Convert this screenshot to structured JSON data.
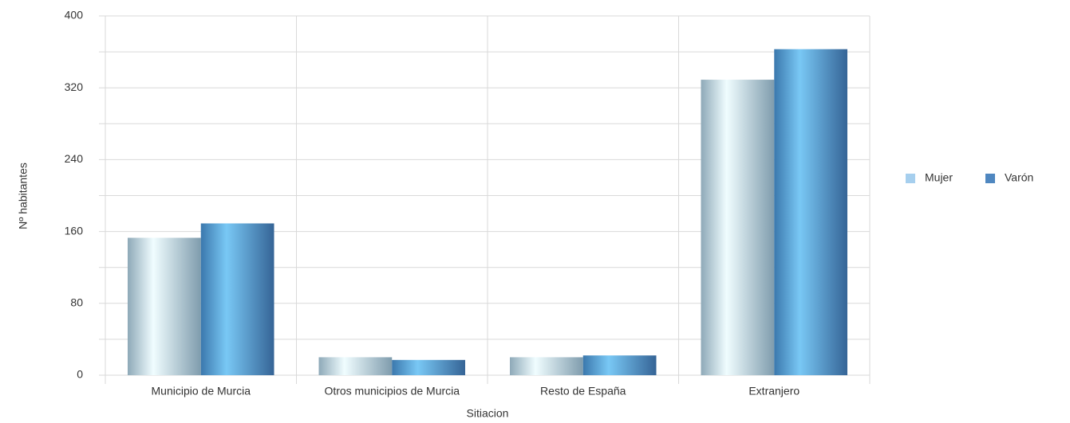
{
  "chart_data": {
    "type": "bar",
    "x_label": "Sitiacion",
    "y_label": "Nº habitantes",
    "categories": [
      "Municipio de Murcia",
      "Otros municipios de Murcia",
      "Resto de España",
      "Extranjero"
    ],
    "series": [
      {
        "name": "Mujer",
        "color": "#a6cfee",
        "values": [
          153,
          20,
          20,
          329
        ]
      },
      {
        "name": "Varón",
        "color": "#4f87c0",
        "values": [
          169,
          17,
          22,
          363
        ]
      }
    ],
    "ylim": [
      0,
      400
    ],
    "yticks": [
      0,
      80,
      160,
      240,
      320,
      400
    ],
    "yticks_minor": [
      40,
      120,
      200,
      280,
      360
    ],
    "grid": true,
    "legend": "right"
  }
}
